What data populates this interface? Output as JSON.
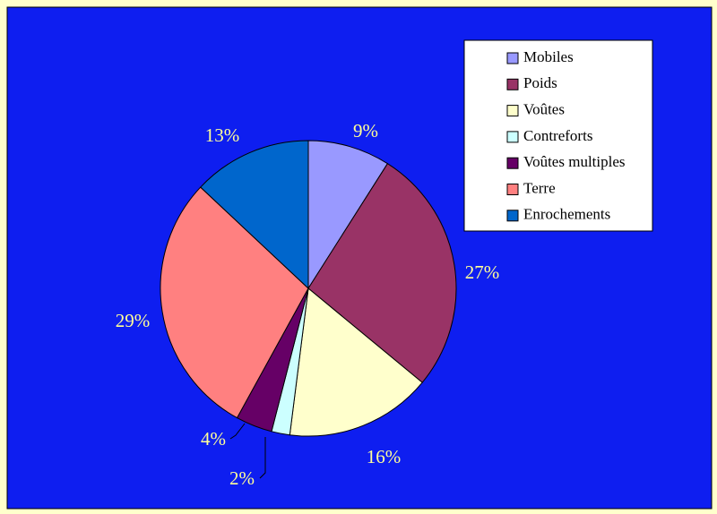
{
  "colors": {
    "page_background": "#ffffcc",
    "plot_background": "#0e1ef0",
    "label_text": "#ffff99",
    "legend_background": "#ffffff",
    "slice_outline": "#000000"
  },
  "chart_data": {
    "type": "pie",
    "start_angle_deg": 0,
    "direction": "clockwise",
    "legend_position": "top-right",
    "slices": [
      {
        "label": "Mobiles",
        "value": 9,
        "display": "9%",
        "color": "#9999ff"
      },
      {
        "label": "Poids",
        "value": 27,
        "display": "27%",
        "color": "#993366"
      },
      {
        "label": "Voûtes",
        "value": 16,
        "display": "16%",
        "color": "#ffffcc"
      },
      {
        "label": "Contreforts",
        "value": 2,
        "display": "2%",
        "color": "#ccffff"
      },
      {
        "label": "Voûtes multiples",
        "value": 4,
        "display": "4%",
        "color": "#660066"
      },
      {
        "label": "Terre",
        "value": 29,
        "display": "29%",
        "color": "#ff8080"
      },
      {
        "label": "Enrochements",
        "value": 13,
        "display": "13%",
        "color": "#0066cc"
      }
    ]
  }
}
